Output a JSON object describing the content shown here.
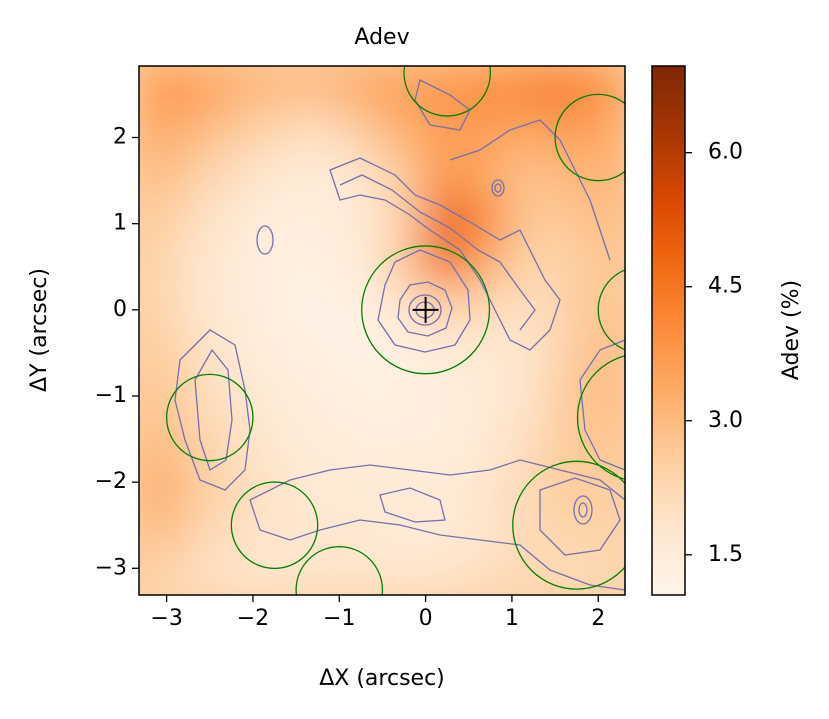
{
  "chart_data": {
    "type": "heatmap",
    "title": "Adev",
    "xlabel": "ΔX (arcsec)",
    "ylabel": "ΔY (arcsec)",
    "colorbar_label": "Adev (%)",
    "xlim": [
      -3.32,
      2.31
    ],
    "ylim": [
      -3.31,
      2.83
    ],
    "xticks": [
      {
        "value": -3,
        "label": "−3"
      },
      {
        "value": -2,
        "label": "−2"
      },
      {
        "value": -1,
        "label": "−1"
      },
      0,
      1,
      2
    ],
    "yticks": [
      {
        "value": -3,
        "label": "−3"
      },
      {
        "value": -2,
        "label": "−2"
      },
      {
        "value": -1,
        "label": "−1"
      },
      0,
      1,
      2
    ],
    "clim": [
      1.05,
      6.97
    ],
    "cticks": [
      1.5,
      {
        "value": 3.0,
        "label": "3.0"
      },
      4.5,
      {
        "value": 6.0,
        "label": "6.0"
      }
    ],
    "colormap": [
      "#fff5eb",
      "#fee6ce",
      "#fdd0a2",
      "#fdae6b",
      "#fd8d3c",
      "#f16913",
      "#d94801",
      "#a63603",
      "#7f2704"
    ],
    "values": [
      [
        3.8,
        3.6,
        3.2,
        3.0,
        3.0,
        3.4,
        3.6,
        3.8,
        4.0,
        4.2,
        4.4,
        4.0
      ],
      [
        3.4,
        3.0,
        2.6,
        2.2,
        2.0,
        2.6,
        3.2,
        3.6,
        3.6,
        3.4,
        3.6,
        3.4
      ],
      [
        3.0,
        2.4,
        2.0,
        1.6,
        1.5,
        1.8,
        2.6,
        3.8,
        3.4,
        2.8,
        3.0,
        3.2
      ],
      [
        2.6,
        2.0,
        1.6,
        1.4,
        1.4,
        1.6,
        2.4,
        5.0,
        4.2,
        2.8,
        2.6,
        3.0
      ],
      [
        2.4,
        1.8,
        1.5,
        1.3,
        1.3,
        1.5,
        2.6,
        4.6,
        3.4,
        2.4,
        2.4,
        2.8
      ],
      [
        2.4,
        1.8,
        1.5,
        1.3,
        1.2,
        1.3,
        1.8,
        2.4,
        2.2,
        2.0,
        2.4,
        2.8
      ],
      [
        2.6,
        2.0,
        1.6,
        1.4,
        1.3,
        1.2,
        1.3,
        1.5,
        1.6,
        1.8,
        2.4,
        3.0
      ],
      [
        2.8,
        2.2,
        1.8,
        1.5,
        1.4,
        1.3,
        1.3,
        1.4,
        1.6,
        1.8,
        2.6,
        3.0
      ],
      [
        3.0,
        2.4,
        2.0,
        1.6,
        1.5,
        1.4,
        1.4,
        1.4,
        1.6,
        2.0,
        2.6,
        2.8
      ],
      [
        3.4,
        2.6,
        2.2,
        1.8,
        1.6,
        1.6,
        1.6,
        1.6,
        1.8,
        2.2,
        2.6,
        2.6
      ],
      [
        3.0,
        2.4,
        2.0,
        1.8,
        1.8,
        1.7,
        1.6,
        1.6,
        1.8,
        2.2,
        2.4,
        2.4
      ],
      [
        2.4,
        2.0,
        1.8,
        1.7,
        1.8,
        1.8,
        1.7,
        1.8,
        2.0,
        2.2,
        2.2,
        2.2
      ]
    ],
    "circle_color": "#008000",
    "circles": [
      {
        "x": 0,
        "y": 0,
        "r": 0.74
      },
      {
        "x": 0.25,
        "y": 2.75,
        "r": 0.5
      },
      {
        "x": 2,
        "y": 2,
        "r": 0.5
      },
      {
        "x": 2.5,
        "y": 0,
        "r": 0.5
      },
      {
        "x": 2.5,
        "y": -1.25,
        "r": 0.74
      },
      {
        "x": -2.5,
        "y": -1.25,
        "r": 0.5
      },
      {
        "x": -1.75,
        "y": -2.5,
        "r": 0.5
      },
      {
        "x": -1,
        "y": -3.25,
        "r": 0.5
      },
      {
        "x": 1.75,
        "y": -2.5,
        "r": 0.74
      }
    ],
    "marker": {
      "x": 0,
      "y": 0
    }
  }
}
